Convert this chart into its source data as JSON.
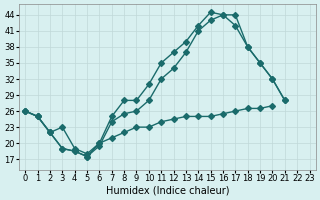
{
  "xlabel": "Humidex (Indice chaleur)",
  "ylabel": "",
  "bg_color": "#d8f0f0",
  "grid_color": "#c0d8d8",
  "line_color": "#1a6b6b",
  "xlim": [
    -0.5,
    23.5
  ],
  "ylim": [
    15,
    46
  ],
  "yticks": [
    17,
    20,
    23,
    26,
    29,
    32,
    35,
    38,
    41,
    44
  ],
  "xticks": [
    0,
    1,
    2,
    3,
    4,
    5,
    6,
    7,
    8,
    9,
    10,
    11,
    12,
    13,
    14,
    15,
    16,
    17,
    18,
    19,
    20,
    21,
    22,
    23
  ],
  "line1_x": [
    0,
    1,
    2,
    3,
    4,
    5,
    6,
    7,
    8,
    9,
    10,
    11,
    12,
    13,
    14,
    15,
    16,
    17,
    18,
    19,
    20,
    21,
    22,
    23
  ],
  "line1_y": [
    26,
    25,
    22,
    19,
    18.5,
    17.5,
    20,
    25,
    28,
    28,
    31,
    35,
    37,
    39,
    42,
    44.5,
    44,
    42,
    38,
    35,
    32,
    28,
    null,
    null
  ],
  "line2_x": [
    0,
    1,
    2,
    3,
    4,
    5,
    6,
    7,
    8,
    9,
    10,
    11,
    12,
    13,
    14,
    15,
    16,
    17,
    18,
    19,
    20,
    21,
    22,
    23
  ],
  "line2_y": [
    26,
    25,
    22,
    19,
    18.5,
    17.5,
    19.5,
    24,
    25.5,
    26,
    28,
    32,
    34,
    37,
    41,
    43,
    44,
    44,
    38,
    35,
    32,
    28,
    null,
    null
  ],
  "line3_x": [
    0,
    1,
    2,
    3,
    4,
    5,
    6,
    7,
    8,
    9,
    10,
    11,
    12,
    13,
    14,
    15,
    16,
    17,
    18,
    19,
    20,
    21,
    22,
    23
  ],
  "line3_y": [
    26,
    25,
    22,
    23,
    19,
    18,
    20,
    21,
    22,
    23,
    23,
    24,
    24.5,
    25,
    25,
    25,
    25.5,
    26,
    26.5,
    26.5,
    27,
    null,
    null,
    null
  ]
}
